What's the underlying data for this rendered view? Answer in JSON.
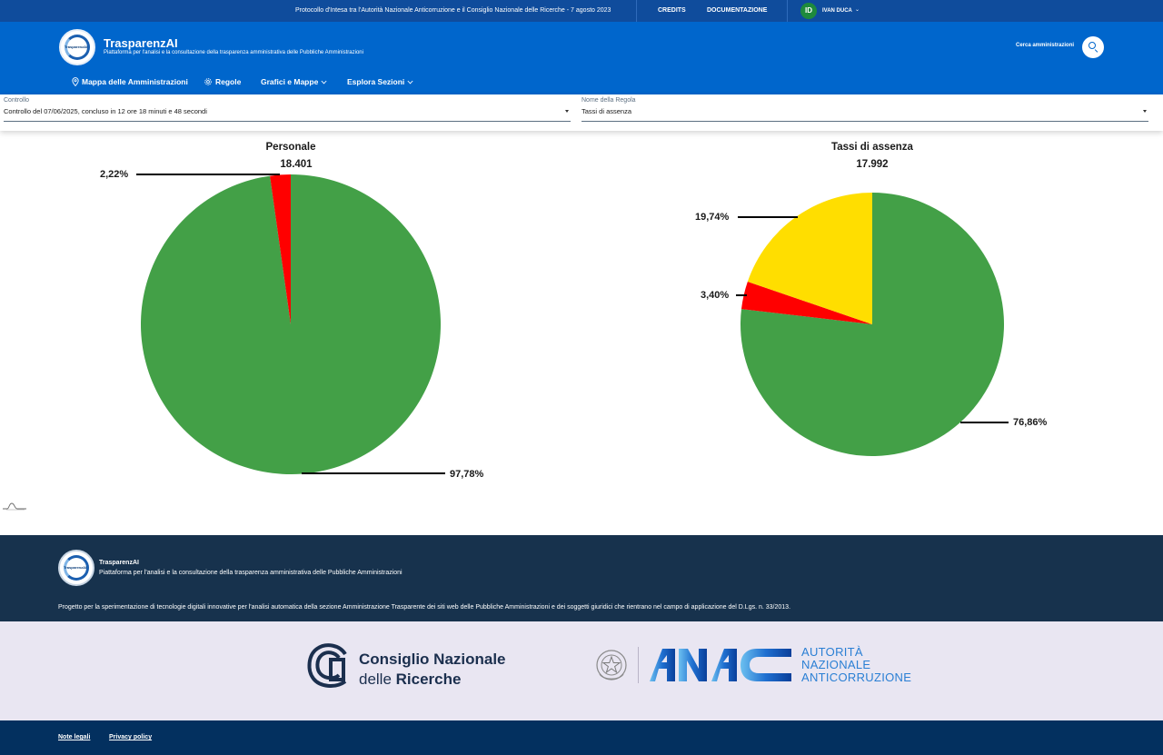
{
  "topbar": {
    "protocol": "Protocollo d'Intesa tra l'Autorità Nazionale Anticorruzione e il Consiglio Nazionale delle Ricerche - 7 agosto 2023",
    "credits": "CREDITS",
    "docs": "DOCUMENTAZIONE",
    "user_initials": "ID",
    "user_name": "IVAN DUCA"
  },
  "header": {
    "brand": "TrasparenzAI",
    "logo_text": "TrasparenzAI",
    "tagline": "Piattaforma per l'analisi e la consultazione della trasparenza amministrativa delle Pubbliche Amministrazioni",
    "search_label": "Cerca amministrazioni",
    "nav": [
      {
        "label": "Mappa delle Amministrazioni",
        "icon": "map-pin-icon"
      },
      {
        "label": "Regole",
        "icon": "gear-icon"
      },
      {
        "label": "Grafici e Mappe",
        "icon": "chevron-down-icon"
      },
      {
        "label": "Esplora Sezioni",
        "icon": "chevron-down-icon"
      }
    ]
  },
  "filters": {
    "controllo": {
      "label": "Controllo",
      "value": "Controllo del 07/06/2025, concluso in 12 ore 18 minuti e 48 secondi"
    },
    "regola": {
      "label": "Nome della Regola",
      "value": "Tassi di assenza"
    }
  },
  "colors": {
    "green": "#43a047",
    "red": "#ff0000",
    "yellow": "#ffde00",
    "header_blue": "#0066cc",
    "footer_navy": "#17324d"
  },
  "chart_data": [
    {
      "type": "pie",
      "title": "Personale",
      "total": "18.401",
      "slices": [
        {
          "value": 97.78,
          "label": "97,78%",
          "color": "#43a047"
        },
        {
          "value": 2.22,
          "label": "2,22%",
          "color": "#ff0000"
        }
      ]
    },
    {
      "type": "pie",
      "title": "Tassi di assenza",
      "total": "17.992",
      "slices": [
        {
          "value": 76.86,
          "label": "76,86%",
          "color": "#43a047"
        },
        {
          "value": 3.4,
          "label": "3,40%",
          "color": "#ff0000"
        },
        {
          "value": 19.74,
          "label": "19,74%",
          "color": "#ffde00"
        }
      ]
    }
  ],
  "footer": {
    "brand": "TrasparenzAI",
    "tagline": "Piattaforma per l'analisi e la consultazione della trasparenza amministrativa delle Pubbliche Amministrazioni",
    "project": "Progetto per la sperimentazione di tecnologie digitali innovative per l'analisi automatica della sezione Amministrazione Trasparente dei siti web delle Pubbliche Amministrazioni e dei soggetti giuridici che rientrano nel campo di applicazione del D.Lgs. n. 33/2013.",
    "cnr_line1": "Consiglio Nazionale",
    "cnr_line2a": "delle ",
    "cnr_line2b": "Ricerche",
    "anac_line1": "AUTORITÀ",
    "anac_line2": "NAZIONALE",
    "anac_line3": "ANTICORRUZIONE",
    "links": [
      "Note legali",
      "Privacy policy"
    ]
  }
}
